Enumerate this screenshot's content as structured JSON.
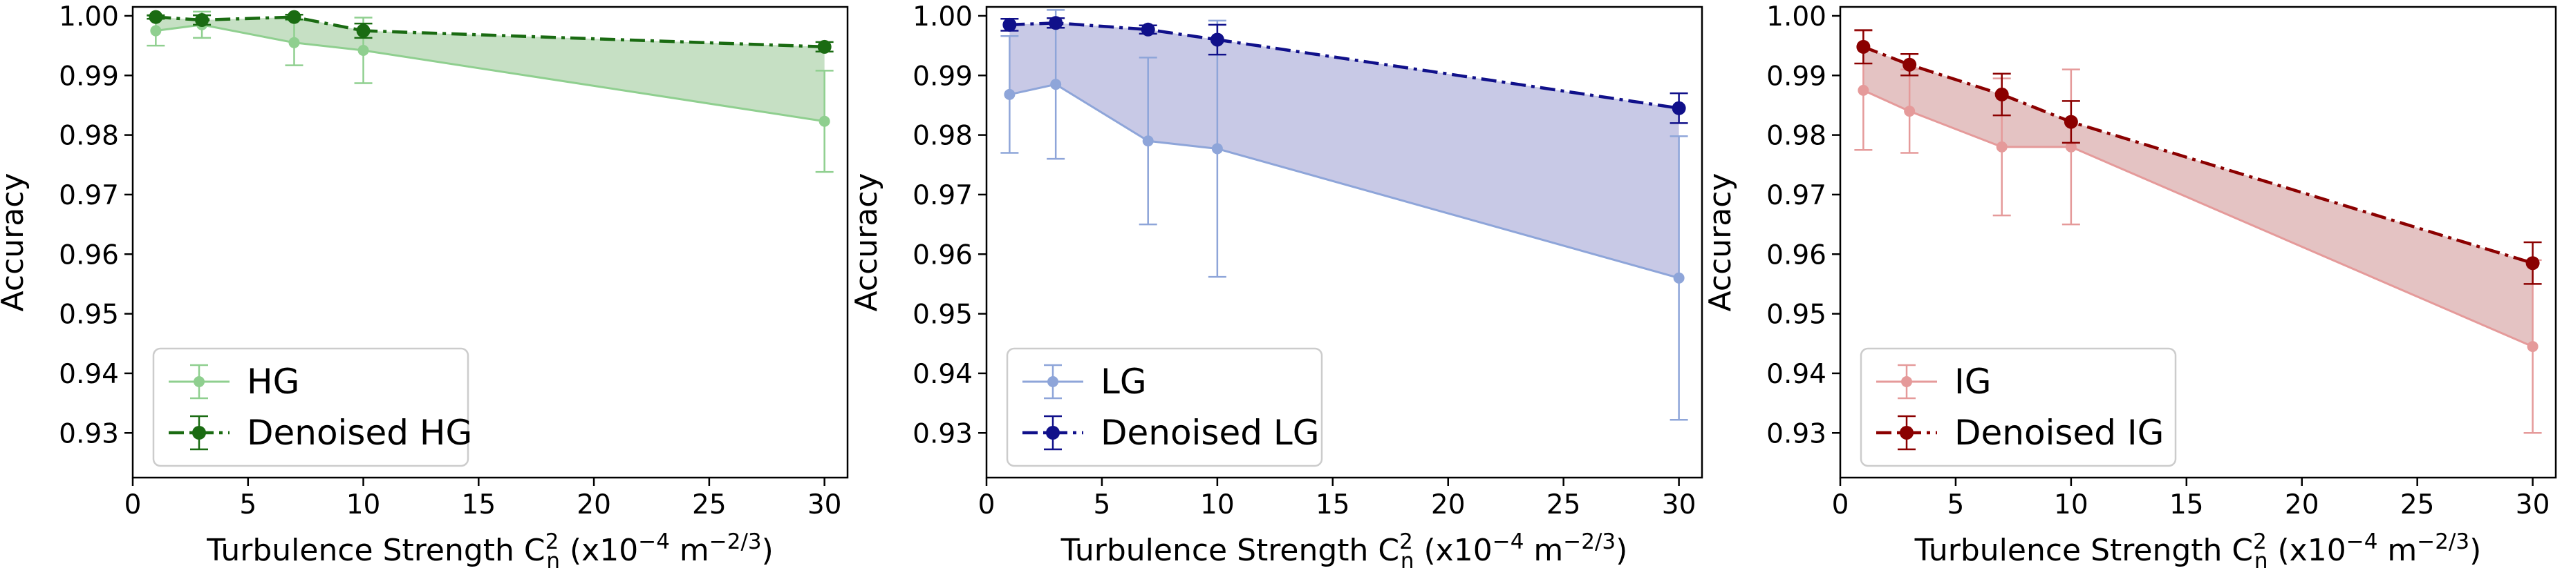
{
  "chart_data": [
    {
      "type": "line",
      "panel": "left",
      "x": [
        1,
        3,
        7,
        10,
        30
      ],
      "xlim": [
        0,
        31
      ],
      "ylim": [
        0.9225,
        1.0015
      ],
      "xticks": [
        0,
        5,
        10,
        15,
        20,
        25,
        30
      ],
      "yticks": [
        0.93,
        0.94,
        0.95,
        0.96,
        0.97,
        0.98,
        0.99,
        1.0
      ],
      "ytick_labels": [
        "0.93",
        "0.94",
        "0.95",
        "0.96",
        "0.97",
        "0.98",
        "0.99",
        "1.00"
      ],
      "xlabel": {
        "main": "Turbulence Strength C",
        "sub": "n",
        "sup": "2",
        "units_open": " (x10",
        "units_exp1": "−4",
        "units_mid": " m",
        "units_exp2": "−2/3",
        "units_close": ")"
      },
      "ylabel": "Accuracy",
      "legend_position": "lower-left",
      "fill_between": true,
      "fill_color": "#c6e0c4",
      "series": [
        {
          "name": "HG",
          "style": "solid",
          "color": "#8fcf8f",
          "values": [
            0.9975,
            0.9985,
            0.9955,
            0.9942,
            0.9823
          ],
          "errors": [
            0.0025,
            0.0022,
            0.0038,
            0.0055,
            0.0085
          ]
        },
        {
          "name": "Denoised HG",
          "style": "dashdot",
          "color": "#1a6b12",
          "values": [
            0.9998,
            0.9993,
            0.9998,
            0.9975,
            0.9948
          ],
          "errors": [
            0.0003,
            0.0008,
            0.0004,
            0.0012,
            0.0008
          ]
        }
      ]
    },
    {
      "type": "line",
      "panel": "middle",
      "x": [
        1,
        3,
        7,
        10,
        30
      ],
      "xlim": [
        0,
        31
      ],
      "ylim": [
        0.9225,
        1.0015
      ],
      "xticks": [
        0,
        5,
        10,
        15,
        20,
        25,
        30
      ],
      "yticks": [
        0.93,
        0.94,
        0.95,
        0.96,
        0.97,
        0.98,
        0.99,
        1.0
      ],
      "ytick_labels": [
        "0.93",
        "0.94",
        "0.95",
        "0.96",
        "0.97",
        "0.98",
        "0.99",
        "1.00"
      ],
      "xlabel": {
        "main": "Turbulence Strength C",
        "sub": "n",
        "sup": "2",
        "units_open": " (x10",
        "units_exp1": "−4",
        "units_mid": " m",
        "units_exp2": "−2/3",
        "units_close": ")"
      },
      "ylabel": "Accuracy",
      "legend_position": "lower-left",
      "fill_between": true,
      "fill_color": "#c8c9e6",
      "series": [
        {
          "name": "LG",
          "style": "solid",
          "color": "#8ea5d9",
          "values": [
            0.9868,
            0.9885,
            0.979,
            0.9777,
            0.956
          ],
          "errors": [
            0.0098,
            0.0125,
            0.014,
            0.0215,
            0.0238
          ]
        },
        {
          "name": "Denoised LG",
          "style": "dashdot",
          "color": "#10108a",
          "values": [
            0.9985,
            0.9988,
            0.9977,
            0.996,
            0.9845
          ],
          "errors": [
            0.001,
            0.0008,
            0.0007,
            0.0025,
            0.0025
          ]
        }
      ]
    },
    {
      "type": "line",
      "panel": "right",
      "x": [
        1,
        3,
        7,
        10,
        30
      ],
      "xlim": [
        0,
        31
      ],
      "ylim": [
        0.9225,
        1.0015
      ],
      "xticks": [
        0,
        5,
        10,
        15,
        20,
        25,
        30
      ],
      "yticks": [
        0.93,
        0.94,
        0.95,
        0.96,
        0.97,
        0.98,
        0.99,
        1.0
      ],
      "ytick_labels": [
        "0.93",
        "0.94",
        "0.95",
        "0.96",
        "0.97",
        "0.98",
        "0.99",
        "1.00"
      ],
      "xlabel": {
        "main": "Turbulence Strength C",
        "sub": "n",
        "sup": "2",
        "units_open": " (x10",
        "units_exp1": "−4",
        "units_mid": " m",
        "units_exp2": "−2/3",
        "units_close": ")"
      },
      "ylabel": "Accuracy",
      "legend_position": "lower-left",
      "fill_between": true,
      "fill_color": "#e4c3c3",
      "series": [
        {
          "name": "IG",
          "style": "solid",
          "color": "#e59a9a",
          "values": [
            0.9875,
            0.984,
            0.978,
            0.978,
            0.9445
          ],
          "errors": [
            0.01,
            0.007,
            0.0115,
            0.013,
            0.0145
          ]
        },
        {
          "name": "Denoised IG",
          "style": "dashdot",
          "color": "#8b0000",
          "values": [
            0.9948,
            0.9918,
            0.9868,
            0.9822,
            0.9585
          ],
          "errors": [
            0.0028,
            0.0018,
            0.0035,
            0.0035,
            0.0035
          ]
        }
      ]
    }
  ]
}
